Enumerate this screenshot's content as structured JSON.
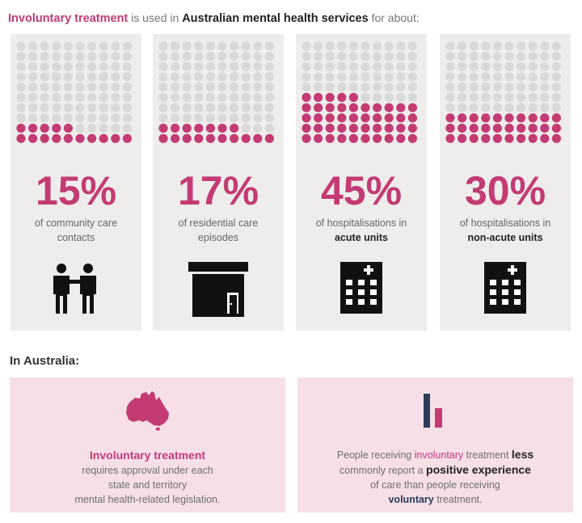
{
  "header": {
    "part1": "Involuntary treatment",
    "part2": " is used in ",
    "part3": "Australian mental health services",
    "part4": " for about:"
  },
  "colors": {
    "accent": "#c43b73",
    "dot_empty": "#d9d9d9",
    "card_bg": "#eeedec",
    "panel_bg": "#f6dfe7",
    "navy": "#2b3d59"
  },
  "cards": [
    {
      "percent": 15,
      "percent_label": "15%",
      "line1": "of community care",
      "line2": "contacts",
      "line2_bold": false,
      "icon": "people-icon"
    },
    {
      "percent": 17,
      "percent_label": "17%",
      "line1": "of residential care",
      "line2": "episodes",
      "line2_bold": false,
      "icon": "house-icon"
    },
    {
      "percent": 45,
      "percent_label": "45%",
      "line1": "of hospitalisations in",
      "line2": "acute units",
      "line2_bold": true,
      "icon": "hospital-icon"
    },
    {
      "percent": 30,
      "percent_label": "30%",
      "line1": "of hospitalisations in",
      "line2": "non-acute units",
      "line2_bold": true,
      "icon": "hospital-icon"
    }
  ],
  "section_title": "In Australia:",
  "left_panel": {
    "icon": "australia-map-icon",
    "heading": "Involuntary treatment",
    "line1": "requires approval under each",
    "line2": "state and territory",
    "line3": "mental health-related legislation."
  },
  "right_panel": {
    "icon": "bar-chart-icon",
    "l1a": "People receiving ",
    "l1b": "involuntary",
    "l1c": " treatment ",
    "l1d": "less",
    "l2a": "commonly report a ",
    "l2b": "positive experience",
    "l3": "of care than people receiving",
    "l4a": "voluntary",
    "l4b": " treatment."
  }
}
